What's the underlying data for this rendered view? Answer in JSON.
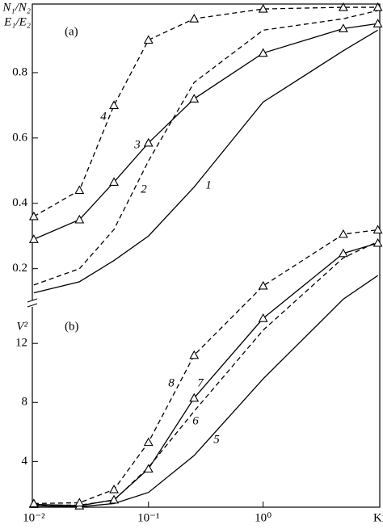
{
  "chart_data": {
    "type": "line",
    "xscale": "log",
    "xlabel": "Kn",
    "ylabel": [
      "N₁/N₂",
      "E₁/E₂"
    ],
    "y2label": "V²",
    "annotations": [
      "(a)",
      "(b)"
    ],
    "x": [
      0.01,
      0.025,
      0.05,
      0.1,
      0.25,
      1,
      5,
      10
    ],
    "xlim": [
      0.0097,
      10.4
    ],
    "xticks": [
      {
        "value": 0.01,
        "label": "10⁻²"
      },
      {
        "value": 0.1,
        "label": "10⁻¹"
      },
      {
        "value": 1,
        "label": "10⁰"
      }
    ],
    "ylim": [
      -0.53,
      1.01
    ],
    "yticks": [
      0.2,
      0.4,
      0.6,
      0.8
    ],
    "y2lim": [
      0.9,
      35
    ],
    "y2ticks": [
      4,
      8,
      12
    ],
    "series": [
      {
        "name": "1",
        "color": "#000",
        "linestyle": "solid",
        "marker": "none",
        "values": [
          0.126,
          0.16,
          0.225,
          0.3,
          0.45,
          0.71,
          0.867,
          0.93
        ]
      },
      {
        "name": "2",
        "color": "#000",
        "linestyle": "dashed",
        "marker": "none",
        "values": [
          0.15,
          0.2,
          0.32,
          0.53,
          0.77,
          0.93,
          0.965,
          0.99
        ]
      },
      {
        "name": "3",
        "color": "#000",
        "linestyle": "solid",
        "marker": "triangle",
        "values": [
          0.29,
          0.35,
          0.465,
          0.585,
          0.72,
          0.86,
          0.935,
          0.95
        ]
      },
      {
        "name": "4",
        "color": "#000",
        "linestyle": "dashed",
        "marker": "triangle",
        "values": [
          0.36,
          0.44,
          0.7,
          0.9,
          0.965,
          0.995,
          1.0,
          1.0
        ]
      },
      {
        "name": "5",
        "color": "#000",
        "linestyle": "solid",
        "marker": "none",
        "axis": "y2",
        "values": [
          1.0,
          0.93,
          1.15,
          1.9,
          4.4,
          9.6,
          15.0,
          16.6
        ]
      },
      {
        "name": "6",
        "color": "#000",
        "linestyle": "dashed",
        "marker": "none",
        "axis": "y2",
        "values": [
          1.04,
          1.04,
          1.37,
          3.6,
          7.4,
          12.9,
          17.8,
          18.9
        ]
      },
      {
        "name": "7",
        "color": "#000",
        "linestyle": "solid",
        "marker": "triangle",
        "axis": "y2",
        "values": [
          1.1,
          1.0,
          1.4,
          3.5,
          8.3,
          13.7,
          18.1,
          18.8
        ]
      },
      {
        "name": "8",
        "color": "#000",
        "linestyle": "dashed",
        "marker": "triangle",
        "axis": "y2",
        "values": [
          1.15,
          1.2,
          2.1,
          5.3,
          11.2,
          15.9,
          19.4,
          19.7
        ]
      }
    ]
  }
}
